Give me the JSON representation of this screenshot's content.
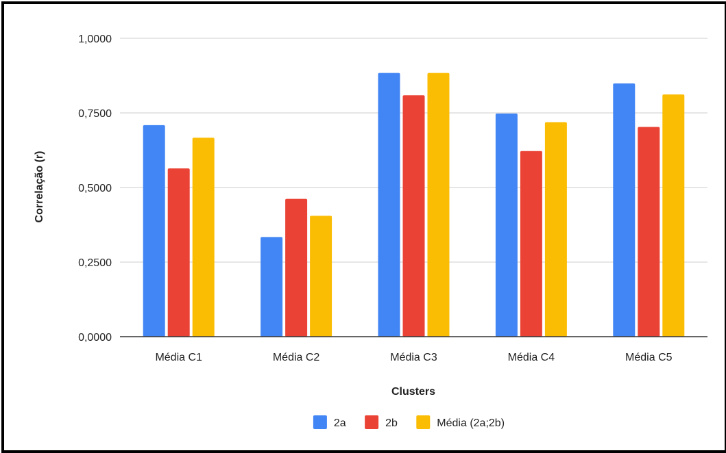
{
  "chart_data": {
    "type": "bar",
    "xlabel": "Clusters",
    "ylabel": "Correlação (r)",
    "categories": [
      "Média C1",
      "Média C2",
      "Média C3",
      "Média C4",
      "Média C5"
    ],
    "series": [
      {
        "name": "2a",
        "color": "#4285F4",
        "values": [
          0.709,
          0.334,
          0.884,
          0.748,
          0.849
        ]
      },
      {
        "name": "2b",
        "color": "#EA4335",
        "values": [
          0.564,
          0.462,
          0.809,
          0.622,
          0.703
        ]
      },
      {
        "name": "Média (2a;2b)",
        "color": "#FBBC04",
        "values": [
          0.667,
          0.405,
          0.884,
          0.719,
          0.812
        ]
      }
    ],
    "yticks": [
      0,
      0.25,
      0.5,
      0.75,
      1.0
    ],
    "ytick_labels": [
      "0,0000",
      "0,2500",
      "0,5000",
      "0,7500",
      "1,0000"
    ],
    "ylim": [
      0,
      1.0
    ],
    "grid": true,
    "legend_position": "bottom"
  }
}
